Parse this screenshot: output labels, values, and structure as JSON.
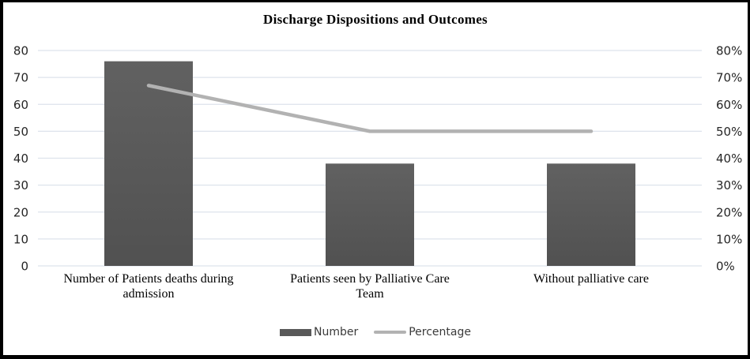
{
  "chart_data": {
    "type": "bar",
    "combo": "bar+line",
    "title": "Discharge Dispositions and Outcomes",
    "categories": [
      "Number of Patients deaths during admission",
      "Patients seen by Palliative Care Team",
      "Without palliative care"
    ],
    "category_lines": [
      [
        "Number of Patients deaths during",
        "admission"
      ],
      [
        "Patients seen by Palliative Care",
        "Team"
      ],
      [
        "Without palliative care"
      ]
    ],
    "series": [
      {
        "name": "Number",
        "type": "bar",
        "axis": "left",
        "values": [
          76,
          38,
          38
        ],
        "color": "#595959"
      },
      {
        "name": "Percentage",
        "type": "line",
        "axis": "right",
        "values": [
          67,
          50,
          50
        ],
        "color": "#b2b2b2"
      }
    ],
    "left_axis": {
      "min": 0,
      "max": 80,
      "step": 10,
      "tick_labels": [
        "0",
        "10",
        "20",
        "30",
        "40",
        "50",
        "60",
        "70",
        "80"
      ]
    },
    "right_axis": {
      "min": 0,
      "max": 80,
      "step": 10,
      "tick_labels": [
        "0%",
        "10%",
        "20%",
        "30%",
        "40%",
        "50%",
        "60%",
        "70%",
        "80%"
      ]
    },
    "grid": true,
    "legend_position": "bottom",
    "colors": {
      "grid_line": "#dde3ec",
      "tick_text": "#262626",
      "bar_fill_top": "#616161",
      "bar_fill_bottom": "#515151",
      "line_stroke": "#b2b2b2"
    }
  }
}
